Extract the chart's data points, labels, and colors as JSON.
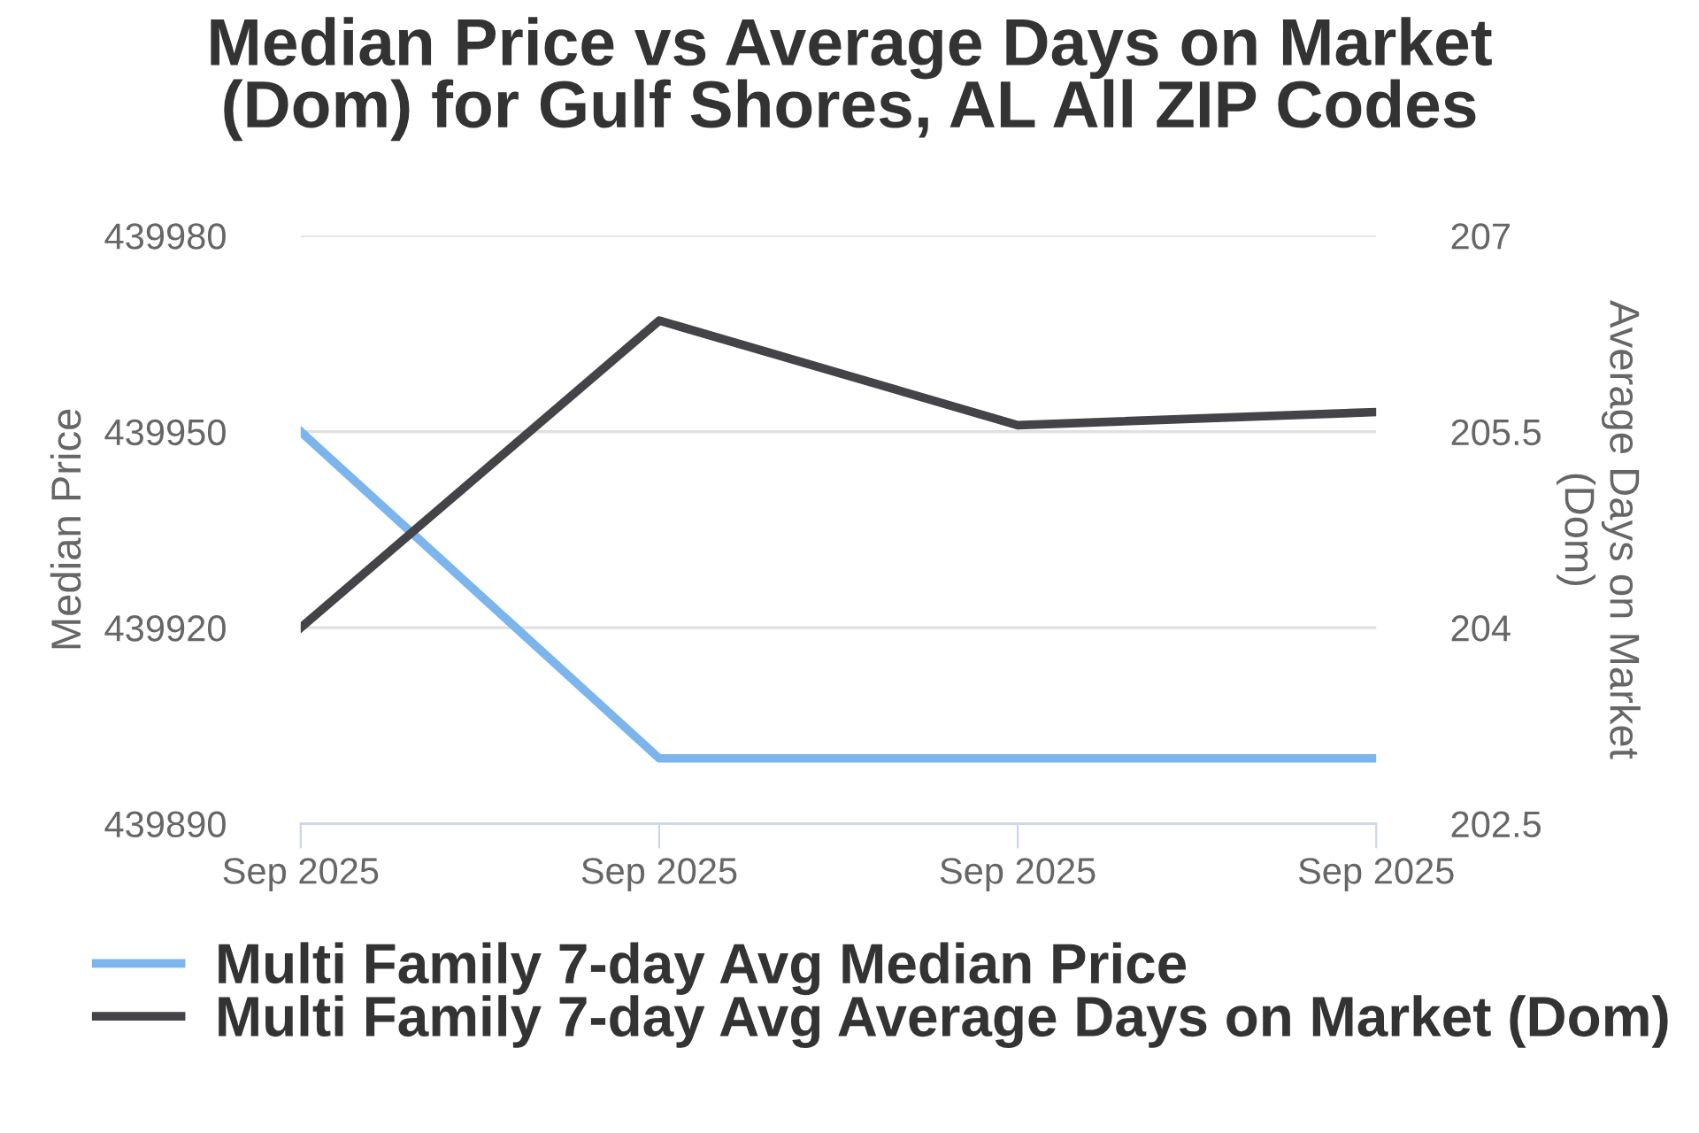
{
  "chart_data": {
    "type": "line",
    "title": "Median Price vs Average Days on Market\n(Dom) for Gulf Shores, AL All ZIP Codes",
    "ylabel": "Median Price",
    "y2label": "Average Days on Market\n(Dom)",
    "categories": [
      "Sep 2025",
      "Sep 2025",
      "Sep 2025",
      "Sep 2025"
    ],
    "series": [
      {
        "name": "Multi Family 7-day Avg Median Price",
        "color": "#7cb5ec",
        "values": [
          439950,
          439900,
          439900,
          439900
        ]
      },
      {
        "name": "Multi Family 7-day Avg Average Days on Market (Dom)",
        "color": "#434348",
        "axis": "y2",
        "values": [
          204,
          206.35,
          205.55,
          205.65
        ]
      }
    ],
    "ylim": [
      439890,
      439980
    ],
    "yticks": [
      439890,
      439920,
      439950,
      439980
    ],
    "y2lim": [
      202.5,
      207
    ],
    "y2ticks": [
      202.5,
      204,
      205.5,
      207
    ],
    "grid": "y",
    "legend": "bottom",
    "marker": "none",
    "line_style": "solid"
  }
}
